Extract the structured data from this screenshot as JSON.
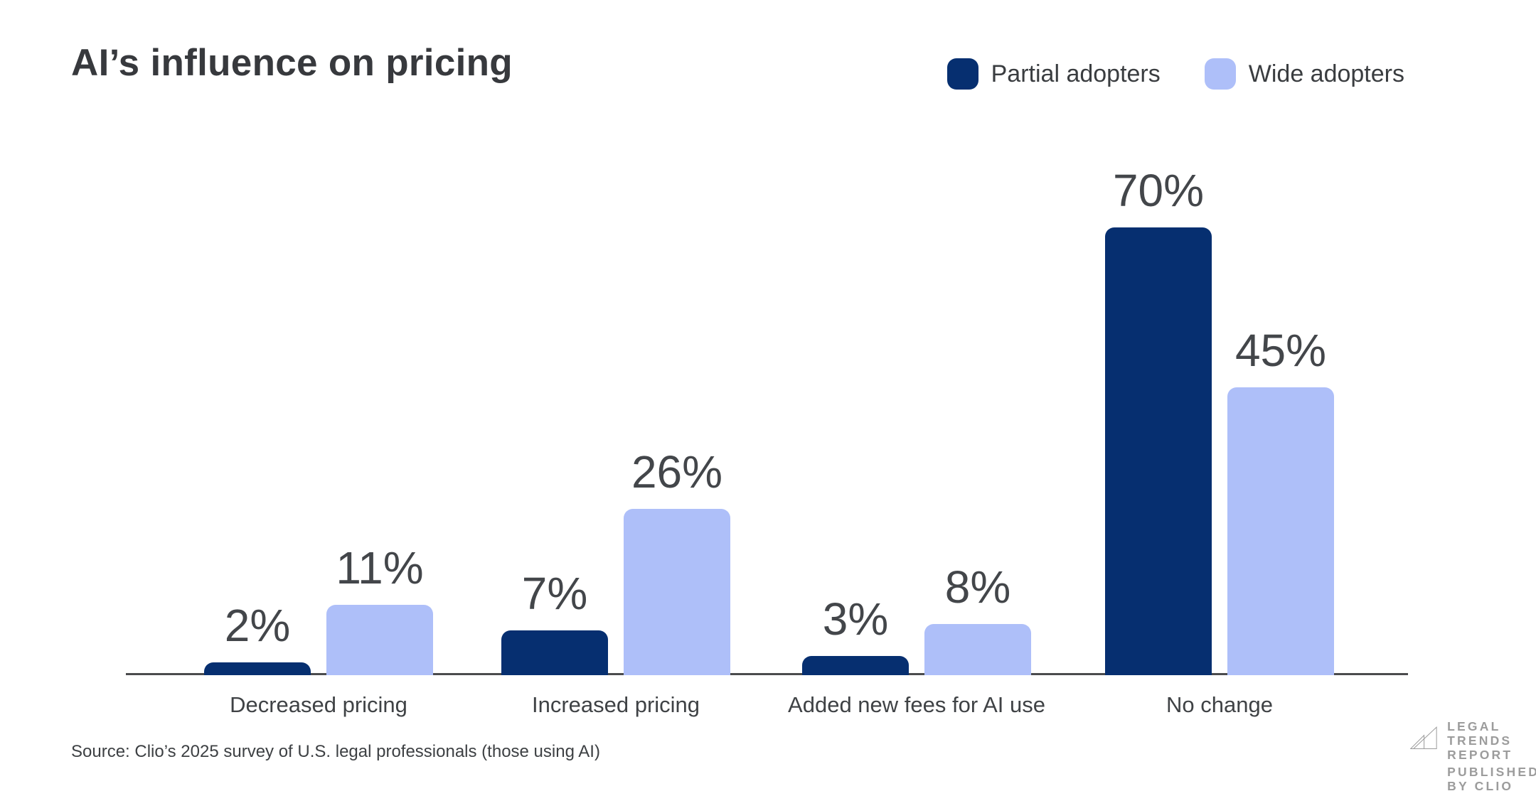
{
  "title": "AI’s influence on pricing",
  "legend": [
    {
      "label": "Partial adopters",
      "color": "#062f70"
    },
    {
      "label": "Wide adopters",
      "color": "#aebff9"
    }
  ],
  "chart_data": {
    "type": "bar",
    "categories": [
      "Decreased pricing",
      "Increased pricing",
      "Added new fees for AI use",
      "No change"
    ],
    "series": [
      {
        "name": "Partial adopters",
        "color": "#062f70",
        "values": [
          2,
          7,
          3,
          70
        ]
      },
      {
        "name": "Wide adopters",
        "color": "#aebff9",
        "values": [
          11,
          26,
          8,
          45
        ]
      }
    ],
    "value_suffix": "%",
    "title": "AI’s influence on pricing",
    "xlabel": "",
    "ylabel": "",
    "ylim": [
      0,
      75
    ],
    "grid": false,
    "legend_position": "top-right",
    "data_labels": true
  },
  "source": "Source: Clio’s 2025 survey of U.S. legal professionals (those using AI)",
  "logo": {
    "icon": "triangles-icon",
    "lines": [
      "LEGAL",
      "TRENDS",
      "REPORT"
    ],
    "tagline": "PUBLISHED BY CLIO",
    "color": "#9c9c9c"
  },
  "colors": {
    "background": "#ffffff",
    "axis": "#4a4b4d",
    "title_text": "#37393d",
    "value_label_text": "#43464a",
    "category_label_text": "#3f4245"
  }
}
